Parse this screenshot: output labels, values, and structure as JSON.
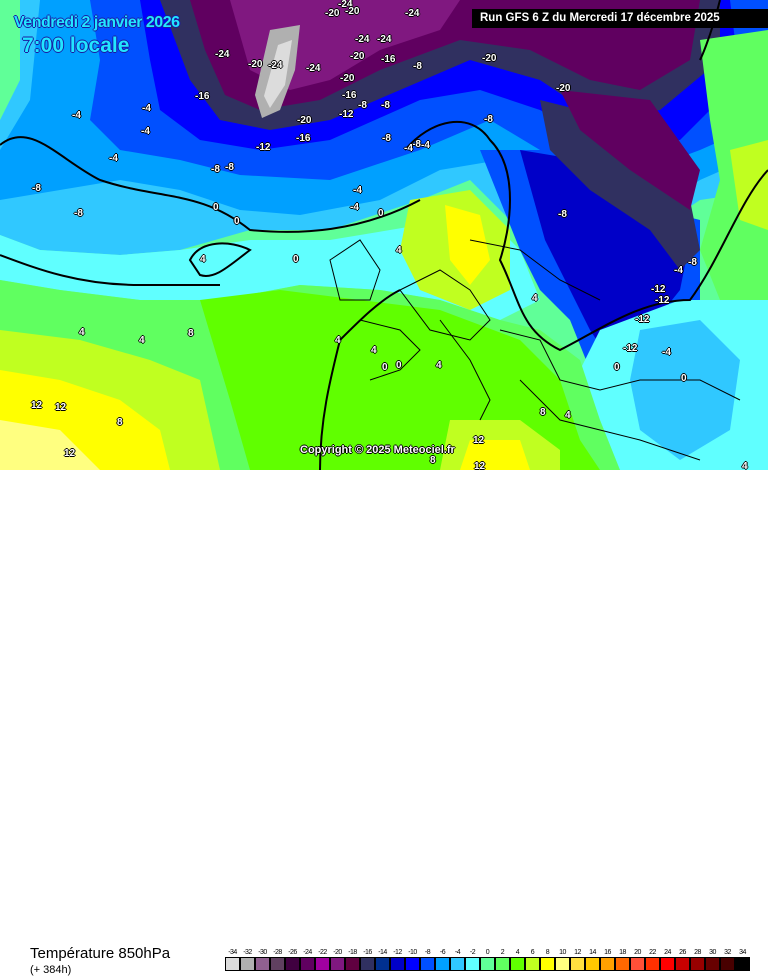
{
  "header": {
    "date": "Vendredi 2 janvier 2026",
    "time": "7:00 locale",
    "run": "Run GFS 6 Z du Mercredi 17 décembre 2025"
  },
  "copyright": "Copyright © 2025 Meteociel.fr",
  "footer": {
    "parameter": "Température 850hPa",
    "lead_time": "(+ 384h)"
  },
  "legend": {
    "labels": [
      "-34",
      "-32",
      "-30",
      "-28",
      "-26",
      "-24",
      "-22",
      "-20",
      "-18",
      "-16",
      "-14",
      "-12",
      "-10",
      "-8",
      "-6",
      "-4",
      "-2",
      "0",
      "2",
      "4",
      "6",
      "8",
      "10",
      "12",
      "14",
      "16",
      "18",
      "20",
      "22",
      "24",
      "26",
      "28",
      "30",
      "32",
      "34"
    ],
    "colors": [
      "#dcdcdc",
      "#b0b0b0",
      "#906090",
      "#604060",
      "#400040",
      "#600060",
      "#a000a0",
      "#801880",
      "#600040",
      "#303060",
      "#003090",
      "#0000c8",
      "#0000ff",
      "#0050ff",
      "#00a0ff",
      "#30c8ff",
      "#60ffff",
      "#60ff98",
      "#60ff60",
      "#60ff00",
      "#c0ff20",
      "#ffff00",
      "#ffff80",
      "#ffe040",
      "#ffc800",
      "#ffa000",
      "#ff6800",
      "#ff5038",
      "#ff3000",
      "#ff0000",
      "#c80000",
      "#980000",
      "#680000",
      "#480000",
      "#000000"
    ]
  },
  "map": {
    "isotherm_labels": [
      "-24",
      "-20",
      "-20",
      "-24",
      "-24",
      "-20",
      "-24",
      "-24",
      "-24",
      "-24",
      "-20",
      "-16",
      "-8",
      "-20",
      "-20",
      "-16",
      "-20",
      "-16",
      "-12",
      "-20",
      "-16",
      "-12",
      "-8",
      "-8",
      "-8",
      "-8",
      "-8",
      "-4",
      "-4",
      "-4",
      "-4",
      "-4",
      "-4",
      "-8",
      "-8",
      "-8",
      "-8",
      "0",
      "0",
      "-4",
      "-4",
      "0",
      "-8",
      "4",
      "0",
      "4",
      "4",
      "-4",
      "-8",
      "-12",
      "-12",
      "-12",
      "-12",
      "-4",
      "4",
      "4",
      "8",
      "4",
      "4",
      "0",
      "0",
      "4",
      "0",
      "0",
      "12",
      "12",
      "8",
      "12",
      "8",
      "12",
      "12",
      "4",
      "8",
      "4"
    ]
  }
}
